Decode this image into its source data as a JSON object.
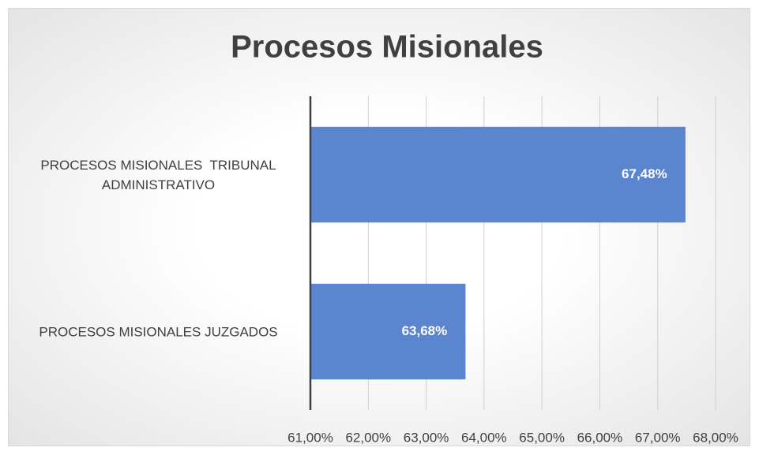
{
  "chart_data": {
    "type": "barh",
    "title": "Procesos Misionales",
    "categories": [
      "PROCESOS MISIONALES  TRIBUNAL ADMINISTRATIVO",
      "PROCESOS MISIONALES JUZGADOS"
    ],
    "values": [
      67.48,
      63.68
    ],
    "value_labels": [
      "67,48%",
      "63,68%"
    ],
    "color": "#5b85cf",
    "xlim": [
      61,
      68
    ],
    "xticks": [
      {
        "value": 61,
        "label": "61,00%"
      },
      {
        "value": 62,
        "label": "62,00%"
      },
      {
        "value": 63,
        "label": "63,00%"
      },
      {
        "value": 64,
        "label": "64,00%"
      },
      {
        "value": 65,
        "label": "65,00%"
      },
      {
        "value": 66,
        "label": "66,00%"
      },
      {
        "value": 67,
        "label": "67,00%"
      },
      {
        "value": 68,
        "label": "68,00%"
      }
    ],
    "grid": true
  }
}
